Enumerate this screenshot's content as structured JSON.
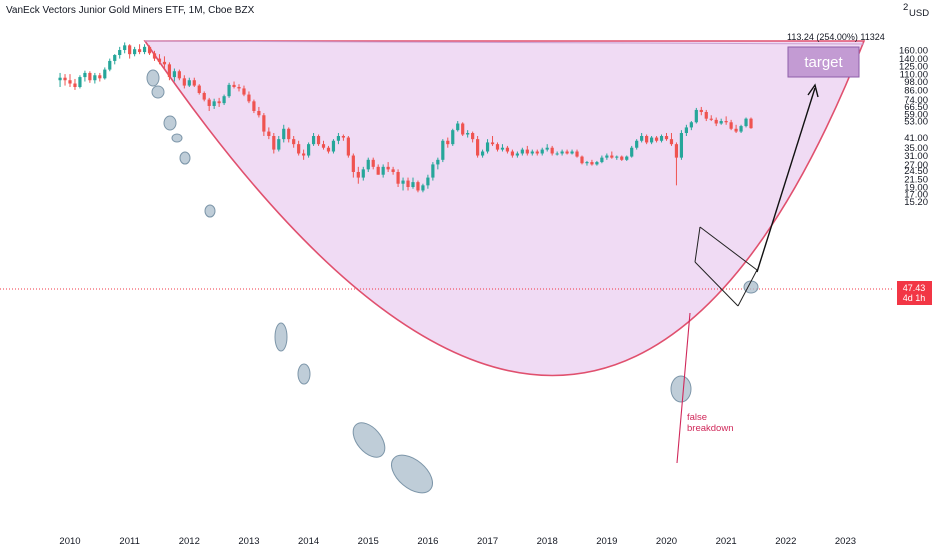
{
  "header": {
    "title": "VanEck Vectors Junior Gold Miners ETF, 1M, Cboe BZX",
    "currency": "USD",
    "top_cut_label": "2"
  },
  "price_axis": {
    "ticks": [
      "160.00",
      "140.00",
      "125.00",
      "110.00",
      "98.00",
      "86.00",
      "74.00",
      "66.50",
      "59.00",
      "53.00",
      "47.43",
      "41.00",
      "35.00",
      "31.00",
      "27.00",
      "24.50",
      "21.50",
      "19.00",
      "17.00",
      "15.20"
    ]
  },
  "last_price": {
    "value": "47.43",
    "countdown": "4d 1h",
    "color": "#f23645"
  },
  "time_axis": {
    "labels": [
      "2010",
      "2011",
      "2012",
      "2013",
      "2014",
      "2015",
      "2016",
      "2017",
      "2018",
      "2019",
      "2020",
      "2021",
      "2022",
      "2023"
    ]
  },
  "annotations": {
    "measure_label": "113.24 (254.00%) 11324",
    "target_label": "target",
    "false_breakdown_line1": "false",
    "false_breakdown_line2": "breakdown"
  },
  "colors": {
    "up": "#26a69a",
    "down": "#ef5350",
    "cup_fill": "#e1bee7",
    "cup_stroke": "#e0506e",
    "target_box": "#c39bd3",
    "ellipse_fill": "#9fb4c7",
    "annotation_red": "#d0285a"
  },
  "chart_data": {
    "type": "candlestick",
    "title": "VanEck Vectors Junior Gold Miners ETF, 1M, Cboe BZX",
    "interval": "1M",
    "y_scale": "log",
    "ylim": [
      14.5,
      210
    ],
    "xlim": [
      "2009-06",
      "2023-06"
    ],
    "x_ticks": [
      "2010",
      "2011",
      "2012",
      "2013",
      "2014",
      "2015",
      "2016",
      "2017",
      "2018",
      "2019",
      "2020",
      "2021",
      "2022",
      "2023"
    ],
    "last_price": 47.43,
    "series": [
      {
        "t": "2009-11",
        "o": 100,
        "h": 112,
        "l": 90,
        "c": 104
      },
      {
        "t": "2009-12",
        "o": 104,
        "h": 110,
        "l": 92,
        "c": 100
      },
      {
        "t": "2010-01",
        "o": 100,
        "h": 110,
        "l": 90,
        "c": 95
      },
      {
        "t": "2010-02",
        "o": 95,
        "h": 102,
        "l": 86,
        "c": 90
      },
      {
        "t": "2010-03",
        "o": 90,
        "h": 108,
        "l": 88,
        "c": 105
      },
      {
        "t": "2010-04",
        "o": 105,
        "h": 116,
        "l": 98,
        "c": 112
      },
      {
        "t": "2010-05",
        "o": 112,
        "h": 115,
        "l": 96,
        "c": 100
      },
      {
        "t": "2010-06",
        "o": 100,
        "h": 112,
        "l": 95,
        "c": 108
      },
      {
        "t": "2010-07",
        "o": 108,
        "h": 112,
        "l": 98,
        "c": 103
      },
      {
        "t": "2010-08",
        "o": 103,
        "h": 122,
        "l": 101,
        "c": 118
      },
      {
        "t": "2010-09",
        "o": 118,
        "h": 140,
        "l": 115,
        "c": 135
      },
      {
        "t": "2010-10",
        "o": 135,
        "h": 150,
        "l": 128,
        "c": 148
      },
      {
        "t": "2010-11",
        "o": 148,
        "h": 168,
        "l": 140,
        "c": 160
      },
      {
        "t": "2010-12",
        "o": 160,
        "h": 180,
        "l": 152,
        "c": 172
      },
      {
        "t": "2011-01",
        "o": 172,
        "h": 175,
        "l": 140,
        "c": 150
      },
      {
        "t": "2011-02",
        "o": 150,
        "h": 168,
        "l": 145,
        "c": 162
      },
      {
        "t": "2011-03",
        "o": 162,
        "h": 175,
        "l": 150,
        "c": 155
      },
      {
        "t": "2011-04",
        "o": 155,
        "h": 175,
        "l": 150,
        "c": 168
      },
      {
        "t": "2011-05",
        "o": 168,
        "h": 172,
        "l": 148,
        "c": 152
      },
      {
        "t": "2011-06",
        "o": 152,
        "h": 158,
        "l": 135,
        "c": 140
      },
      {
        "t": "2011-07",
        "o": 140,
        "h": 150,
        "l": 128,
        "c": 133
      },
      {
        "t": "2011-08",
        "o": 133,
        "h": 145,
        "l": 120,
        "c": 128
      },
      {
        "t": "2011-09",
        "o": 128,
        "h": 132,
        "l": 100,
        "c": 105
      },
      {
        "t": "2011-10",
        "o": 105,
        "h": 120,
        "l": 98,
        "c": 115
      },
      {
        "t": "2011-11",
        "o": 115,
        "h": 118,
        "l": 100,
        "c": 103
      },
      {
        "t": "2011-12",
        "o": 103,
        "h": 108,
        "l": 88,
        "c": 92
      },
      {
        "t": "2012-01",
        "o": 92,
        "h": 104,
        "l": 90,
        "c": 100
      },
      {
        "t": "2012-02",
        "o": 100,
        "h": 104,
        "l": 90,
        "c": 92
      },
      {
        "t": "2012-03",
        "o": 92,
        "h": 94,
        "l": 80,
        "c": 82
      },
      {
        "t": "2012-04",
        "o": 82,
        "h": 84,
        "l": 72,
        "c": 74
      },
      {
        "t": "2012-05",
        "o": 74,
        "h": 76,
        "l": 62,
        "c": 67
      },
      {
        "t": "2012-06",
        "o": 67,
        "h": 75,
        "l": 64,
        "c": 72
      },
      {
        "t": "2012-07",
        "o": 72,
        "h": 76,
        "l": 66,
        "c": 70
      },
      {
        "t": "2012-08",
        "o": 70,
        "h": 80,
        "l": 68,
        "c": 78
      },
      {
        "t": "2012-09",
        "o": 78,
        "h": 96,
        "l": 76,
        "c": 93
      },
      {
        "t": "2012-10",
        "o": 93,
        "h": 98,
        "l": 88,
        "c": 90
      },
      {
        "t": "2012-11",
        "o": 90,
        "h": 94,
        "l": 84,
        "c": 88
      },
      {
        "t": "2012-12",
        "o": 88,
        "h": 92,
        "l": 78,
        "c": 80
      },
      {
        "t": "2013-01",
        "o": 80,
        "h": 84,
        "l": 70,
        "c": 72
      },
      {
        "t": "2013-02",
        "o": 72,
        "h": 74,
        "l": 60,
        "c": 62
      },
      {
        "t": "2013-03",
        "o": 62,
        "h": 66,
        "l": 56,
        "c": 58
      },
      {
        "t": "2013-04",
        "o": 58,
        "h": 60,
        "l": 42,
        "c": 45
      },
      {
        "t": "2013-05",
        "o": 45,
        "h": 48,
        "l": 40,
        "c": 42
      },
      {
        "t": "2013-06",
        "o": 42,
        "h": 44,
        "l": 32,
        "c": 34
      },
      {
        "t": "2013-07",
        "o": 34,
        "h": 42,
        "l": 33,
        "c": 40
      },
      {
        "t": "2013-08",
        "o": 40,
        "h": 50,
        "l": 38,
        "c": 47
      },
      {
        "t": "2013-09",
        "o": 47,
        "h": 48,
        "l": 38,
        "c": 40
      },
      {
        "t": "2013-10",
        "o": 40,
        "h": 42,
        "l": 35,
        "c": 37
      },
      {
        "t": "2013-11",
        "o": 37,
        "h": 39,
        "l": 31,
        "c": 32
      },
      {
        "t": "2013-12",
        "o": 32,
        "h": 34,
        "l": 29,
        "c": 31
      },
      {
        "t": "2014-01",
        "o": 31,
        "h": 38,
        "l": 30,
        "c": 37
      },
      {
        "t": "2014-02",
        "o": 37,
        "h": 44,
        "l": 36,
        "c": 42
      },
      {
        "t": "2014-03",
        "o": 42,
        "h": 43,
        "l": 36,
        "c": 37
      },
      {
        "t": "2014-04",
        "o": 37,
        "h": 39,
        "l": 34,
        "c": 35
      },
      {
        "t": "2014-05",
        "o": 35,
        "h": 36,
        "l": 32,
        "c": 33
      },
      {
        "t": "2014-06",
        "o": 33,
        "h": 40,
        "l": 32,
        "c": 39
      },
      {
        "t": "2014-07",
        "o": 39,
        "h": 44,
        "l": 37,
        "c": 42
      },
      {
        "t": "2014-08",
        "o": 42,
        "h": 43,
        "l": 39,
        "c": 41
      },
      {
        "t": "2014-09",
        "o": 41,
        "h": 42,
        "l": 30,
        "c": 31
      },
      {
        "t": "2014-10",
        "o": 31,
        "h": 32,
        "l": 22,
        "c": 24
      },
      {
        "t": "2014-11",
        "o": 24,
        "h": 26,
        "l": 20,
        "c": 22
      },
      {
        "t": "2014-12",
        "o": 22,
        "h": 26,
        "l": 21,
        "c": 25
      },
      {
        "t": "2015-01",
        "o": 25,
        "h": 30,
        "l": 24,
        "c": 29
      },
      {
        "t": "2015-02",
        "o": 29,
        "h": 30,
        "l": 25,
        "c": 26
      },
      {
        "t": "2015-03",
        "o": 26,
        "h": 27,
        "l": 23,
        "c": 23
      },
      {
        "t": "2015-04",
        "o": 23,
        "h": 27,
        "l": 22,
        "c": 26
      },
      {
        "t": "2015-05",
        "o": 26,
        "h": 28,
        "l": 24,
        "c": 25
      },
      {
        "t": "2015-06",
        "o": 25,
        "h": 26,
        "l": 23,
        "c": 24
      },
      {
        "t": "2015-07",
        "o": 24,
        "h": 25,
        "l": 19,
        "c": 20
      },
      {
        "t": "2015-08",
        "o": 20,
        "h": 22,
        "l": 18,
        "c": 21
      },
      {
        "t": "2015-09",
        "o": 21,
        "h": 22,
        "l": 18,
        "c": 19
      },
      {
        "t": "2015-10",
        "o": 19,
        "h": 22,
        "l": 18.5,
        "c": 20.5
      },
      {
        "t": "2015-11",
        "o": 20.5,
        "h": 21,
        "l": 17.5,
        "c": 18
      },
      {
        "t": "2015-12",
        "o": 18,
        "h": 20,
        "l": 17.5,
        "c": 19.5
      },
      {
        "t": "2016-01",
        "o": 19.5,
        "h": 23,
        "l": 18.5,
        "c": 22
      },
      {
        "t": "2016-02",
        "o": 22,
        "h": 28,
        "l": 21,
        "c": 27
      },
      {
        "t": "2016-03",
        "o": 27,
        "h": 30,
        "l": 25,
        "c": 29
      },
      {
        "t": "2016-04",
        "o": 29,
        "h": 40,
        "l": 28,
        "c": 39
      },
      {
        "t": "2016-05",
        "o": 39,
        "h": 41,
        "l": 35,
        "c": 37
      },
      {
        "t": "2016-06",
        "o": 37,
        "h": 47,
        "l": 36,
        "c": 46
      },
      {
        "t": "2016-07",
        "o": 46,
        "h": 53,
        "l": 45,
        "c": 51
      },
      {
        "t": "2016-08",
        "o": 51,
        "h": 52,
        "l": 42,
        "c": 43
      },
      {
        "t": "2016-09",
        "o": 43,
        "h": 46,
        "l": 41,
        "c": 44
      },
      {
        "t": "2016-10",
        "o": 44,
        "h": 45,
        "l": 38,
        "c": 40
      },
      {
        "t": "2016-11",
        "o": 40,
        "h": 42,
        "l": 30,
        "c": 31
      },
      {
        "t": "2016-12",
        "o": 31,
        "h": 34,
        "l": 30,
        "c": 33
      },
      {
        "t": "2017-01",
        "o": 33,
        "h": 40,
        "l": 32,
        "c": 38
      },
      {
        "t": "2017-02",
        "o": 38,
        "h": 42,
        "l": 36,
        "c": 37
      },
      {
        "t": "2017-03",
        "o": 37,
        "h": 38,
        "l": 33,
        "c": 34
      },
      {
        "t": "2017-04",
        "o": 34,
        "h": 37,
        "l": 33,
        "c": 35
      },
      {
        "t": "2017-05",
        "o": 35,
        "h": 36,
        "l": 32,
        "c": 33
      },
      {
        "t": "2017-06",
        "o": 33,
        "h": 34,
        "l": 30,
        "c": 31
      },
      {
        "t": "2017-07",
        "o": 31,
        "h": 33,
        "l": 30,
        "c": 32
      },
      {
        "t": "2017-08",
        "o": 32,
        "h": 35,
        "l": 31,
        "c": 34
      },
      {
        "t": "2017-09",
        "o": 34,
        "h": 36,
        "l": 31,
        "c": 32
      },
      {
        "t": "2017-10",
        "o": 32,
        "h": 34,
        "l": 31,
        "c": 33
      },
      {
        "t": "2017-11",
        "o": 33,
        "h": 34,
        "l": 31,
        "c": 32
      },
      {
        "t": "2017-12",
        "o": 32,
        "h": 35,
        "l": 31,
        "c": 34
      },
      {
        "t": "2018-01",
        "o": 34,
        "h": 37,
        "l": 33,
        "c": 35
      },
      {
        "t": "2018-02",
        "o": 35,
        "h": 36,
        "l": 31,
        "c": 32
      },
      {
        "t": "2018-03",
        "o": 32,
        "h": 33,
        "l": 31,
        "c": 32
      },
      {
        "t": "2018-04",
        "o": 32,
        "h": 34,
        "l": 31,
        "c": 33
      },
      {
        "t": "2018-05",
        "o": 33,
        "h": 34,
        "l": 31.5,
        "c": 32
      },
      {
        "t": "2018-06",
        "o": 32,
        "h": 34,
        "l": 31.5,
        "c": 33
      },
      {
        "t": "2018-07",
        "o": 33,
        "h": 34,
        "l": 30,
        "c": 30.5
      },
      {
        "t": "2018-08",
        "o": 30.5,
        "h": 31,
        "l": 27,
        "c": 27.5
      },
      {
        "t": "2018-09",
        "o": 27.5,
        "h": 28.5,
        "l": 26.5,
        "c": 28
      },
      {
        "t": "2018-10",
        "o": 28,
        "h": 29,
        "l": 26.5,
        "c": 27
      },
      {
        "t": "2018-11",
        "o": 27,
        "h": 28.5,
        "l": 26.5,
        "c": 28
      },
      {
        "t": "2018-12",
        "o": 28,
        "h": 31,
        "l": 27.5,
        "c": 30
      },
      {
        "t": "2019-01",
        "o": 30,
        "h": 32,
        "l": 29,
        "c": 31
      },
      {
        "t": "2019-02",
        "o": 31,
        "h": 33,
        "l": 29.5,
        "c": 30
      },
      {
        "t": "2019-03",
        "o": 30,
        "h": 31,
        "l": 29,
        "c": 30.5
      },
      {
        "t": "2019-04",
        "o": 30.5,
        "h": 31,
        "l": 28.5,
        "c": 29
      },
      {
        "t": "2019-05",
        "o": 29,
        "h": 31,
        "l": 28.5,
        "c": 30.5
      },
      {
        "t": "2019-06",
        "o": 30.5,
        "h": 36,
        "l": 30,
        "c": 35
      },
      {
        "t": "2019-07",
        "o": 35,
        "h": 40,
        "l": 34,
        "c": 39
      },
      {
        "t": "2019-08",
        "o": 39,
        "h": 44,
        "l": 38,
        "c": 42
      },
      {
        "t": "2019-09",
        "o": 42,
        "h": 43,
        "l": 37,
        "c": 38
      },
      {
        "t": "2019-10",
        "o": 38,
        "h": 42,
        "l": 37,
        "c": 41
      },
      {
        "t": "2019-11",
        "o": 41,
        "h": 42,
        "l": 38,
        "c": 39
      },
      {
        "t": "2019-12",
        "o": 39,
        "h": 43,
        "l": 38,
        "c": 42
      },
      {
        "t": "2020-01",
        "o": 42,
        "h": 44,
        "l": 39,
        "c": 40
      },
      {
        "t": "2020-02",
        "o": 40,
        "h": 44,
        "l": 36,
        "c": 37
      },
      {
        "t": "2020-03",
        "o": 37,
        "h": 38,
        "l": 19.5,
        "c": 30
      },
      {
        "t": "2020-04",
        "o": 30,
        "h": 46,
        "l": 29,
        "c": 44
      },
      {
        "t": "2020-05",
        "o": 44,
        "h": 50,
        "l": 42,
        "c": 48
      },
      {
        "t": "2020-06",
        "o": 48,
        "h": 53,
        "l": 46,
        "c": 52
      },
      {
        "t": "2020-07",
        "o": 52,
        "h": 65,
        "l": 51,
        "c": 63
      },
      {
        "t": "2020-08",
        "o": 63,
        "h": 66,
        "l": 58,
        "c": 61
      },
      {
        "t": "2020-09",
        "o": 61,
        "h": 63,
        "l": 53,
        "c": 55
      },
      {
        "t": "2020-10",
        "o": 55,
        "h": 58,
        "l": 53,
        "c": 54
      },
      {
        "t": "2020-11",
        "o": 54,
        "h": 56,
        "l": 49,
        "c": 51
      },
      {
        "t": "2020-12",
        "o": 51,
        "h": 55,
        "l": 50,
        "c": 53
      },
      {
        "t": "2021-01",
        "o": 53,
        "h": 57,
        "l": 50,
        "c": 52
      },
      {
        "t": "2021-02",
        "o": 52,
        "h": 54,
        "l": 46,
        "c": 47
      },
      {
        "t": "2021-03",
        "o": 47,
        "h": 50,
        "l": 44,
        "c": 45
      },
      {
        "t": "2021-04",
        "o": 45,
        "h": 50,
        "l": 44,
        "c": 49
      },
      {
        "t": "2021-05",
        "o": 49,
        "h": 56,
        "l": 48,
        "c": 55
      },
      {
        "t": "2021-06",
        "o": 55,
        "h": 56,
        "l": 47,
        "c": 47.43
      }
    ]
  }
}
